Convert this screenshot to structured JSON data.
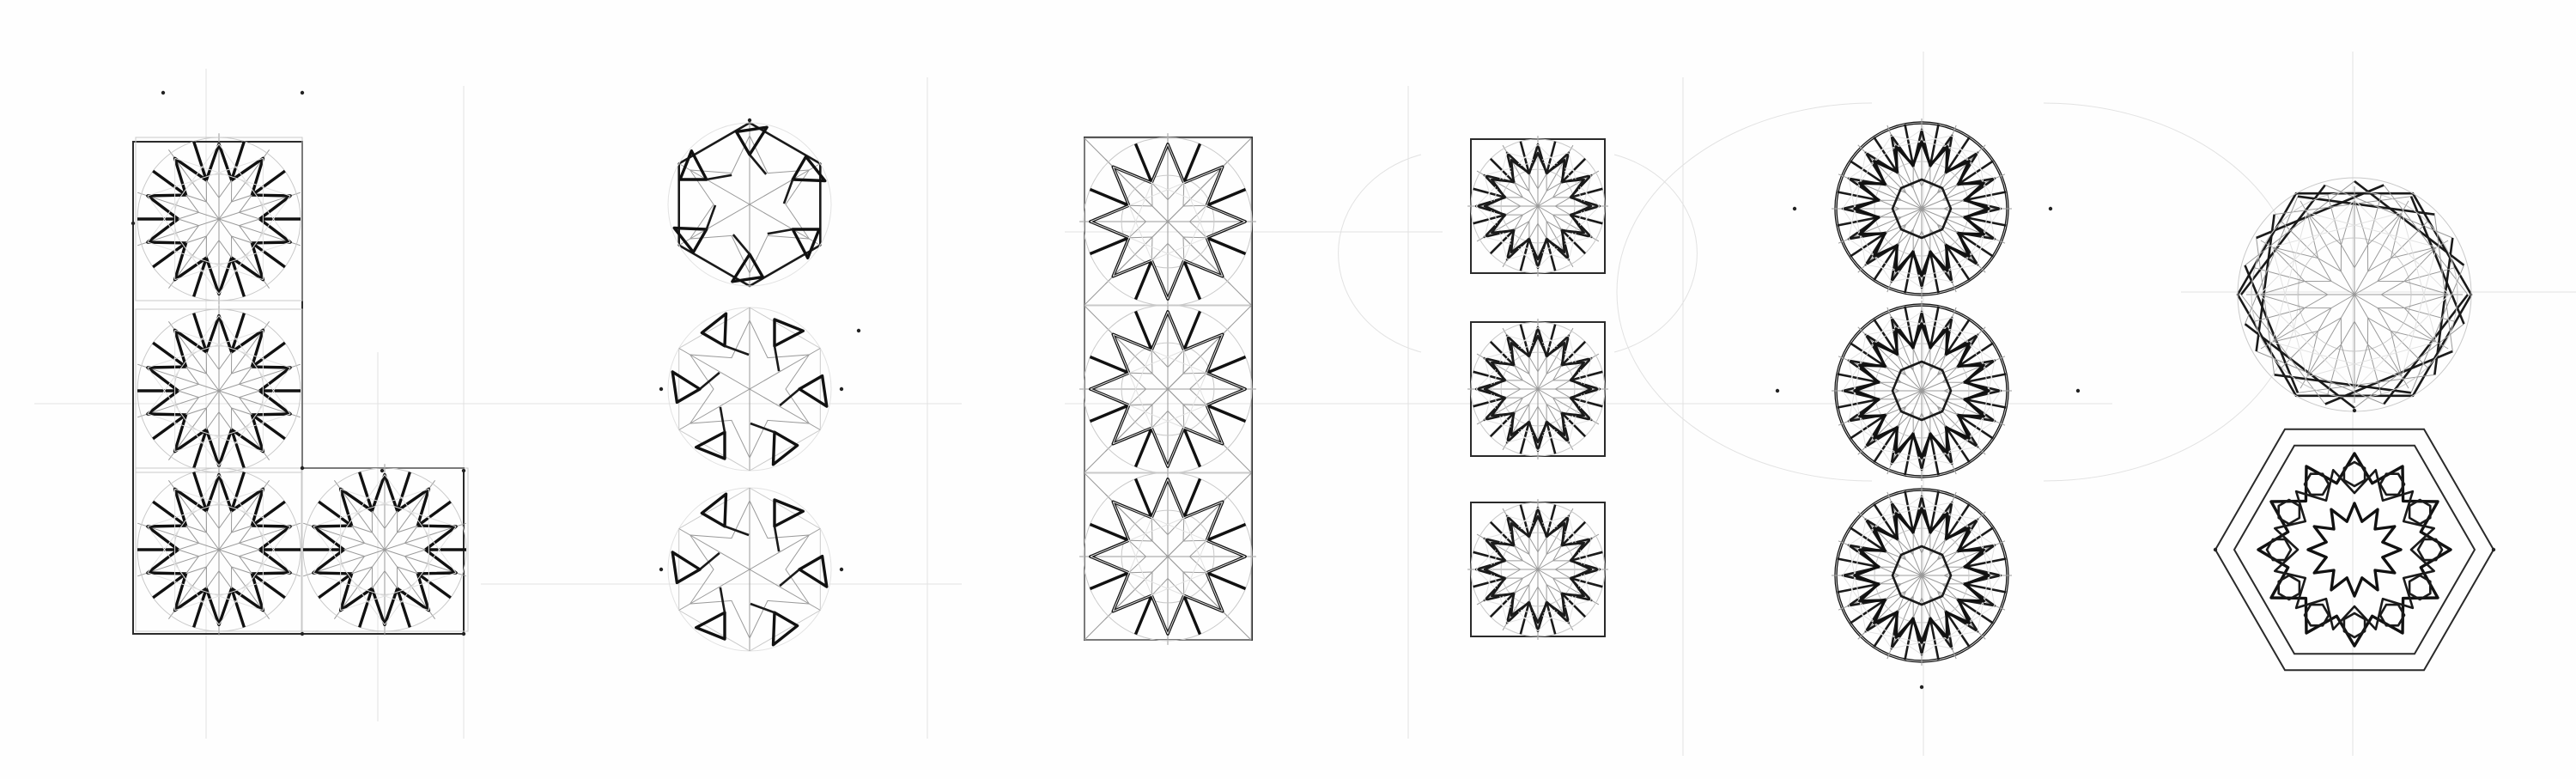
{
  "sheet": {
    "panels": [
      {
        "name": "l-shaped-panel",
        "motif": "ten-point-star",
        "tiles": 4
      },
      {
        "name": "hexagon-column-panel",
        "motif": "six-point-rosette",
        "tiles": 3
      },
      {
        "name": "tall-rectangle-panel",
        "motif": "eight-point-star",
        "tiles": 3
      },
      {
        "name": "square-column-panel",
        "motif": "twelve-point-rosette",
        "tiles": 3
      },
      {
        "name": "circle-column-panel",
        "motif": "sixteen-point-rosette",
        "tiles": 3
      },
      {
        "name": "hexagon-pair-panel",
        "motif": "twelve-point-interlace",
        "tiles": 2
      }
    ]
  }
}
